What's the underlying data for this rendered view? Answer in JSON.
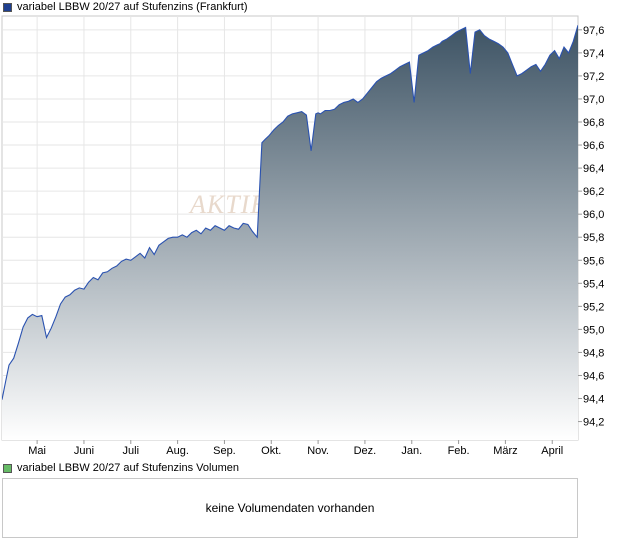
{
  "legend": {
    "price_label": "variabel LBBW 20/27 auf Stufenzins (Frankfurt)",
    "price_color": "#1f3f8f",
    "volume_label": "variabel LBBW 20/27 auf Stufenzins Volumen",
    "volume_color": "#66bb66"
  },
  "watermark": "AKTIEN",
  "volume_panel": {
    "message": "keine Volumendaten vorhanden"
  },
  "chart_data": {
    "type": "area",
    "title": "",
    "xlabel": "",
    "ylabel": "",
    "ylim": [
      94.04,
      97.72
    ],
    "y_ticks": [
      94.2,
      94.4,
      94.6,
      94.8,
      95.0,
      95.2,
      95.4,
      95.6,
      95.8,
      96.0,
      96.2,
      96.4,
      96.6,
      96.8,
      97.0,
      97.2,
      97.4,
      97.6
    ],
    "y_tick_labels": [
      "94,2",
      "94,4",
      "94,6",
      "94,8",
      "95,0",
      "95,2",
      "95,4",
      "95,6",
      "95,8",
      "96,0",
      "96,2",
      "96,4",
      "96,6",
      "96,8",
      "97,0",
      "97,2",
      "97,4",
      "97,6"
    ],
    "x_range": [
      0,
      12.3
    ],
    "x_ticks": [
      0.75,
      1.75,
      2.75,
      3.75,
      4.75,
      5.75,
      6.75,
      7.75,
      8.75,
      9.75,
      10.75,
      11.75
    ],
    "x_tick_labels": [
      "Mai",
      "Juni",
      "Juli",
      "Aug.",
      "Sep.",
      "Okt.",
      "Nov.",
      "Dez.",
      "Jan.",
      "Feb.",
      "März",
      "April"
    ],
    "grid": true,
    "line_color": "#2a52b0",
    "gradient_top": "#3d5364",
    "gradient_bottom": "#ffffff",
    "series": [
      {
        "x": [
          0.0,
          0.08,
          0.15,
          0.25,
          0.35,
          0.45,
          0.55,
          0.65,
          0.75,
          0.85,
          0.95,
          1.05,
          1.15,
          1.25,
          1.35,
          1.45,
          1.55,
          1.65,
          1.75,
          1.85,
          1.95,
          2.05,
          2.15,
          2.25,
          2.35,
          2.45,
          2.55,
          2.65,
          2.75,
          2.85,
          2.95,
          3.05,
          3.15,
          3.25,
          3.35,
          3.45,
          3.55,
          3.65,
          3.75,
          3.85,
          3.95,
          4.05,
          4.15,
          4.25,
          4.35,
          4.45,
          4.55,
          4.65,
          4.75,
          4.85,
          4.95,
          5.05,
          5.15,
          5.25,
          5.35,
          5.45,
          5.55,
          5.62,
          5.7,
          5.8,
          5.9,
          6.0,
          6.1,
          6.2,
          6.3,
          6.4,
          6.5,
          6.6,
          6.7,
          6.75,
          6.8,
          6.9,
          7.0,
          7.1,
          7.2,
          7.3,
          7.4,
          7.5,
          7.6,
          7.7,
          7.8,
          7.9,
          8.0,
          8.1,
          8.2,
          8.3,
          8.4,
          8.5,
          8.6,
          8.7,
          8.8,
          8.9,
          9.0,
          9.1,
          9.2,
          9.3,
          9.35,
          9.4,
          9.5,
          9.6,
          9.7,
          9.8,
          9.9,
          10.0,
          10.1,
          10.2,
          10.3,
          10.4,
          10.5,
          10.6,
          10.7,
          10.8,
          10.9,
          11.0,
          11.1,
          11.2,
          11.3,
          11.4,
          11.5,
          11.6,
          11.7,
          11.8,
          11.9,
          12.0,
          12.1,
          12.2,
          12.3
        ],
        "y": [
          94.39,
          94.55,
          94.69,
          94.75,
          94.88,
          95.02,
          95.1,
          95.13,
          95.11,
          95.12,
          94.93,
          95.01,
          95.11,
          95.22,
          95.28,
          95.3,
          95.34,
          95.36,
          95.35,
          95.41,
          95.45,
          95.43,
          95.49,
          95.5,
          95.53,
          95.55,
          95.59,
          95.61,
          95.6,
          95.63,
          95.66,
          95.62,
          95.71,
          95.65,
          95.73,
          95.76,
          95.79,
          95.8,
          95.8,
          95.82,
          95.8,
          95.84,
          95.86,
          95.83,
          95.88,
          95.86,
          95.9,
          95.88,
          95.86,
          95.9,
          95.88,
          95.87,
          95.92,
          95.91,
          95.85,
          95.8,
          96.62,
          96.65,
          96.68,
          96.73,
          96.77,
          96.8,
          96.85,
          96.87,
          96.88,
          96.89,
          96.86,
          96.55,
          96.87,
          96.88,
          96.87,
          96.9,
          96.9,
          96.91,
          96.95,
          96.97,
          96.98,
          97.0,
          96.97,
          97.0,
          97.05,
          97.1,
          97.15,
          97.18,
          97.2,
          97.22,
          97.25,
          97.28,
          97.3,
          97.32,
          96.97,
          97.38,
          97.4,
          97.42,
          97.45,
          97.47,
          97.48,
          97.5,
          97.52,
          97.55,
          97.58,
          97.6,
          97.62,
          97.22,
          97.58,
          97.6,
          97.55,
          97.52,
          97.5,
          97.48,
          97.45,
          97.4,
          97.3,
          97.2,
          97.22,
          97.25,
          97.28,
          97.3,
          97.24,
          97.3,
          97.38,
          97.42,
          97.35,
          97.45,
          97.4,
          97.5,
          97.64
        ]
      }
    ]
  }
}
